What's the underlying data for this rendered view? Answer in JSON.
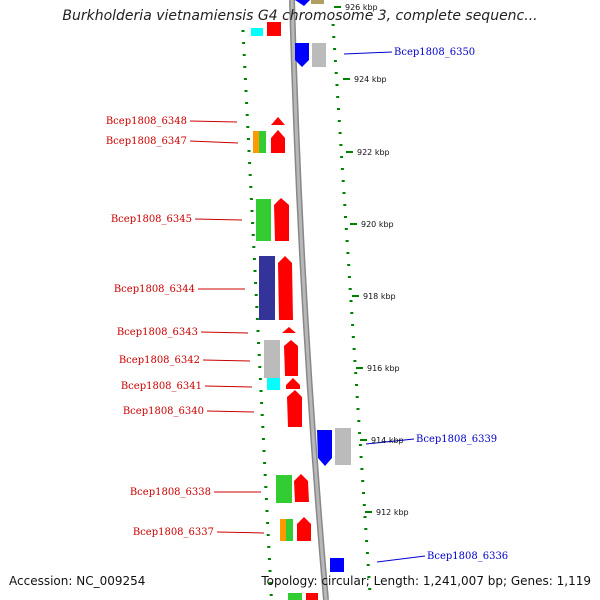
{
  "title": "Burkholderia vietnamiensis G4 chromosome 3, complete sequenc...",
  "accession_text": "Accession: NC_009254",
  "summary_text": "Topology: circular; Length: 1,241,007 bp; Genes: 1,119",
  "kbp_markers": [
    "926 kbp",
    "924 kbp",
    "922 kbp",
    "920 kbp",
    "918 kbp",
    "916 kbp",
    "914 kbp",
    "912 kbp"
  ],
  "left_genes": [
    "Bcep1808_6348",
    "Bcep1808_6347",
    "Bcep1808_6345",
    "Bcep1808_6344",
    "Bcep1808_6343",
    "Bcep1808_6342",
    "Bcep1808_6341",
    "Bcep1808_6340",
    "Bcep1808_6338",
    "Bcep1808_6337"
  ],
  "right_genes": [
    "Bcep1808_6350",
    "Bcep1808_6339",
    "Bcep1808_6336"
  ],
  "colors": {
    "left_label": "#cc0000",
    "right_label": "#0000cc",
    "backbone": "#999999",
    "tick": "#008000",
    "red": "#ff0000",
    "orange": "#ff9900",
    "green": "#33cc33",
    "navy": "#333399",
    "grey": "#bbbbbb",
    "cyan": "#00ffff",
    "blue": "#0000ff",
    "olive": "#b0a060"
  }
}
